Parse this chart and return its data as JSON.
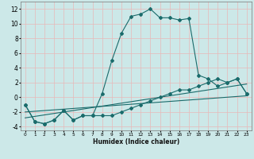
{
  "xlabel": "Humidex (Indice chaleur)",
  "bg_color": "#cce8e8",
  "grid_color": "#e8b8b8",
  "line_color": "#1a6b6b",
  "xlim": [
    -0.5,
    23.5
  ],
  "ylim": [
    -4.5,
    13
  ],
  "xticks": [
    0,
    1,
    2,
    3,
    4,
    5,
    6,
    7,
    8,
    9,
    10,
    11,
    12,
    13,
    14,
    15,
    16,
    17,
    18,
    19,
    20,
    21,
    22,
    23
  ],
  "yticks": [
    -4,
    -2,
    0,
    2,
    4,
    6,
    8,
    10,
    12
  ],
  "main_x": [
    0,
    1,
    2,
    3,
    4,
    5,
    6,
    7,
    8,
    9,
    10,
    11,
    12,
    13,
    14,
    15,
    16,
    17,
    18,
    19,
    20,
    21,
    22,
    23
  ],
  "main_y": [
    -1,
    -3.3,
    -3.6,
    -3.1,
    -1.8,
    -3.1,
    -2.5,
    -2.5,
    0.5,
    5.0,
    8.7,
    11.0,
    11.3,
    12.0,
    10.8,
    10.8,
    10.5,
    10.7,
    3.0,
    2.5,
    1.5,
    2.0,
    2.5,
    0.5
  ],
  "lower_x": [
    0,
    1,
    2,
    3,
    4,
    5,
    6,
    7,
    8,
    9,
    10,
    11,
    12,
    13,
    14,
    15,
    16,
    17,
    18,
    19,
    20,
    21,
    22,
    23
  ],
  "lower_y": [
    -1,
    -3.3,
    -3.6,
    -3.1,
    -1.8,
    -3.1,
    -2.5,
    -2.5,
    -2.5,
    -2.5,
    -2.0,
    -1.5,
    -1.0,
    -0.5,
    0.0,
    0.5,
    1.0,
    1.0,
    1.5,
    2.0,
    2.5,
    2.0,
    2.5,
    0.5
  ],
  "trend1_x": [
    0,
    23
  ],
  "trend1_y": [
    -2.0,
    0.2
  ],
  "trend2_x": [
    0,
    23
  ],
  "trend2_y": [
    -2.8,
    1.8
  ]
}
